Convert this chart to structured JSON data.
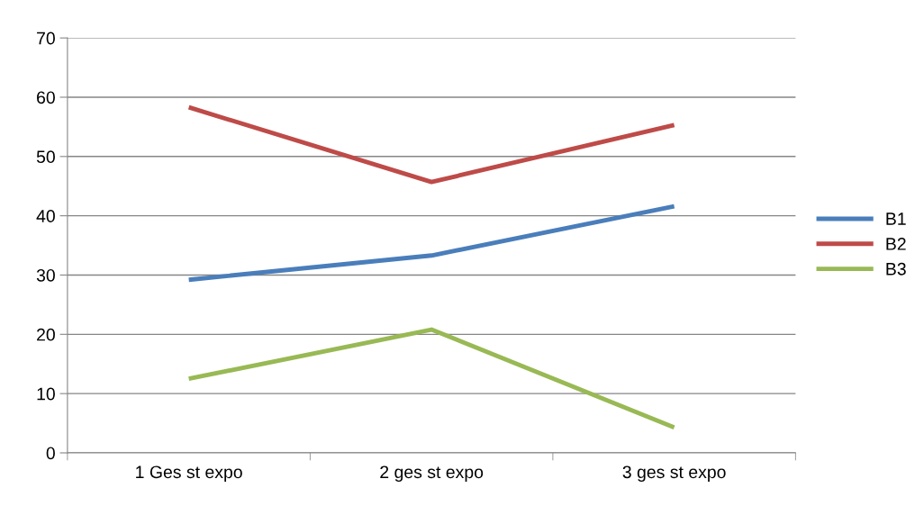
{
  "chart_data": {
    "type": "line",
    "categories": [
      "1 Ges st expo",
      "2 ges st expo",
      "3 ges st expo"
    ],
    "series": [
      {
        "name": "B1",
        "color": "#4a7ebb",
        "values": [
          29.2,
          33.3,
          41.6
        ]
      },
      {
        "name": "B2",
        "color": "#be4b48",
        "values": [
          58.3,
          45.7,
          55.3
        ]
      },
      {
        "name": "B3",
        "color": "#98b954",
        "values": [
          12.5,
          20.8,
          4.3
        ]
      }
    ],
    "ylim": [
      0,
      70
    ],
    "yticks": [
      0,
      10,
      20,
      30,
      40,
      50,
      60,
      70
    ],
    "grid": "y",
    "legend": "right",
    "marker": "none",
    "line_style": "solid"
  }
}
